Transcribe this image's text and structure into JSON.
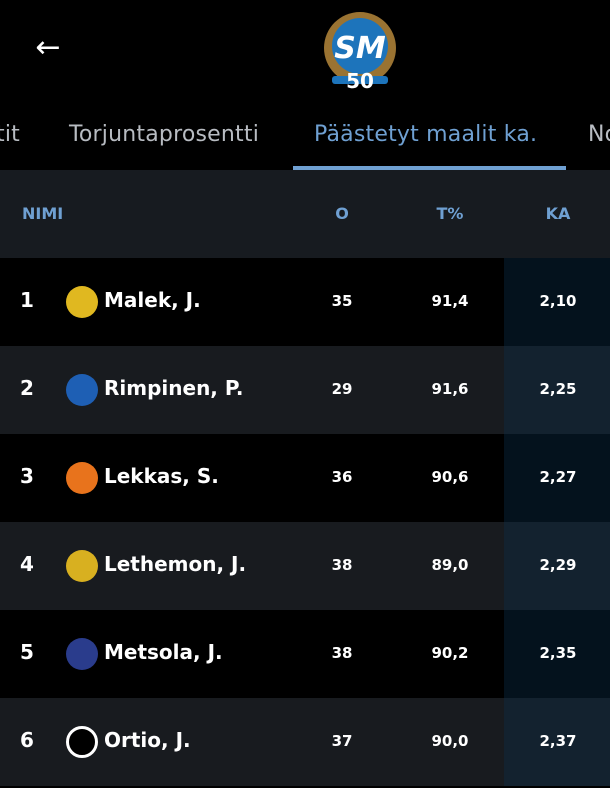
{
  "header": {
    "back_icon": "arrow-left-icon",
    "logo_text": "SM 50"
  },
  "tabs": [
    {
      "label": "tit"
    },
    {
      "label": "Torjuntaprosentti"
    },
    {
      "label": "Päästetyt maalit ka.",
      "active": true
    },
    {
      "label": "No"
    }
  ],
  "table": {
    "columns": [
      "NIMI",
      "O",
      "T%",
      "KA"
    ],
    "rows": [
      {
        "rank": "1",
        "name": "Malek, J.",
        "o": "35",
        "t": "91,4",
        "ka": "2,10",
        "team_color": "#e0b820"
      },
      {
        "rank": "2",
        "name": "Rimpinen, P.",
        "o": "29",
        "t": "91,6",
        "ka": "2,25",
        "team_color": "#1e5fb4"
      },
      {
        "rank": "3",
        "name": "Lekkas, S.",
        "o": "36",
        "t": "90,6",
        "ka": "2,27",
        "team_color": "#e8731c"
      },
      {
        "rank": "4",
        "name": "Lethemon, J.",
        "o": "38",
        "t": "89,0",
        "ka": "2,29",
        "team_color": "#d8b020"
      },
      {
        "rank": "5",
        "name": "Metsola, J.",
        "o": "38",
        "t": "90,2",
        "ka": "2,35",
        "team_color": "#2a3c8c"
      },
      {
        "rank": "6",
        "name": "Ortio, J.",
        "o": "37",
        "t": "90,0",
        "ka": "2,37",
        "team_color": "#ffffff"
      }
    ]
  },
  "colors": {
    "accent": "#6fa0d2",
    "header_bg": "#171b20",
    "row_alt": "#181b1f"
  }
}
